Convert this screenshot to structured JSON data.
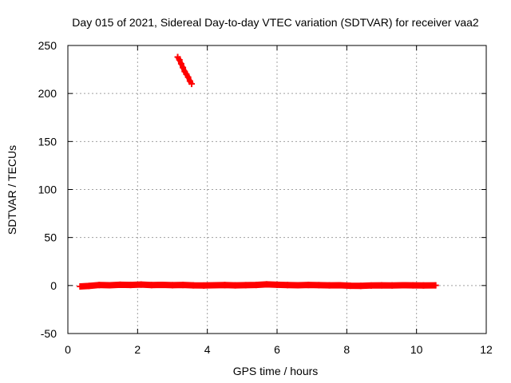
{
  "chart_data": {
    "type": "scatter",
    "title": "Day 015 of 2021, Sidereal Day-to-day VTEC variation (SDTVAR) for receiver vaa2",
    "xlabel": "GPS time / hours",
    "ylabel": "SDTVAR / TECUs",
    "xlim": [
      0,
      12
    ],
    "ylim": [
      -50,
      250
    ],
    "x_ticks": [
      0,
      2,
      4,
      6,
      8,
      10,
      12
    ],
    "y_ticks": [
      -50,
      0,
      50,
      100,
      150,
      200,
      250
    ],
    "x_tick_labels": [
      "0",
      "2",
      "4",
      "6",
      "8",
      "10",
      "12"
    ],
    "y_tick_labels": [
      "-50",
      "0",
      "50",
      "100",
      "150",
      "200",
      "250"
    ],
    "grid": true,
    "legend": "none",
    "color": "#ff0000",
    "series": [
      {
        "x": [
          0.35,
          0.6,
          0.9,
          1.2,
          1.5,
          1.8,
          2.1,
          2.4,
          2.7,
          3.0,
          3.3,
          3.6,
          3.9,
          4.2,
          4.5,
          4.8,
          5.1,
          5.4,
          5.7,
          6.0,
          6.3,
          6.6,
          6.9,
          7.2,
          7.5,
          7.8,
          8.1,
          8.4,
          8.7,
          9.0,
          9.3,
          9.6,
          9.9,
          10.2,
          10.55
        ],
        "y": [
          -1,
          -0.5,
          0.5,
          0.3,
          0.8,
          0.6,
          1,
          0.5,
          0.7,
          0.4,
          0.6,
          0.2,
          0,
          0.3,
          0.5,
          0.2,
          0.4,
          0.6,
          1.2,
          0.8,
          0.5,
          0.3,
          0.6,
          0.4,
          0.2,
          0.3,
          -0.2,
          -0.3,
          0,
          0.2,
          0.1,
          0.3,
          0.2,
          0.1,
          0.2
        ]
      },
      {
        "x": [
          3.15,
          3.2,
          3.25,
          3.3,
          3.35,
          3.4,
          3.45,
          3.5,
          3.55
        ],
        "y": [
          238,
          235,
          231,
          227,
          223,
          220,
          217,
          213,
          210
        ]
      }
    ]
  }
}
